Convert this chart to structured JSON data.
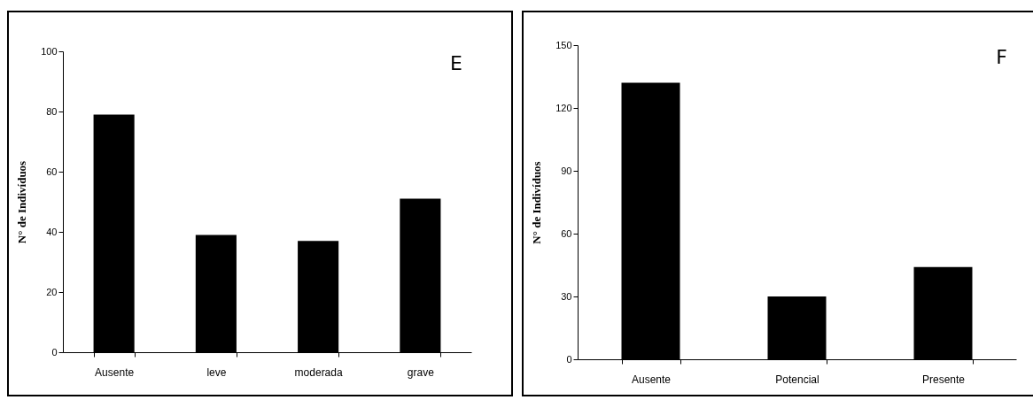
{
  "chart_data": [
    {
      "type": "bar",
      "categories": [
        "Ausente",
        "leve",
        "moderada",
        "grave"
      ],
      "values": [
        79,
        39,
        37,
        51
      ],
      "color": "#000000",
      "ylabel": "N° de Indivíduos",
      "ylim": [
        0,
        100
      ],
      "yticks": [
        0,
        20,
        40,
        60,
        80,
        100
      ],
      "annotations": [
        "E"
      ]
    },
    {
      "type": "bar",
      "categories": [
        "Ausente",
        "Potencial",
        "Presente"
      ],
      "values": [
        132,
        30,
        44
      ],
      "color": "#000000",
      "ylabel": "N° de Indivíduos",
      "ylim": [
        0,
        150
      ],
      "yticks": [
        0,
        30,
        60,
        90,
        120,
        150
      ],
      "annotations": [
        "F"
      ]
    }
  ]
}
